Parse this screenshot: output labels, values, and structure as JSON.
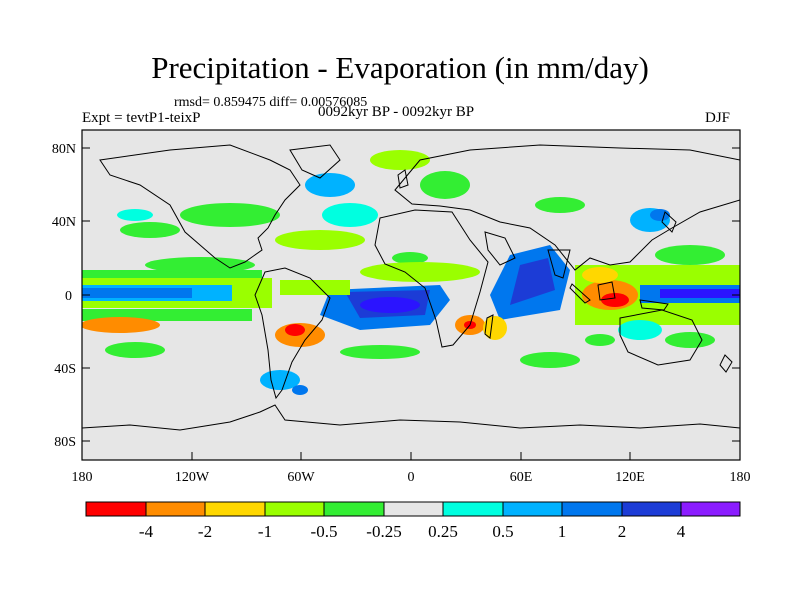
{
  "title": "Precipitation - Evaporation (in mm/day)",
  "stats_text": "rmsd= 0.859475 diff= 0.00576085",
  "left_label": "Expt = tevtP1-teixP",
  "center_label": "0092kyr BP - 0092kyr BP",
  "right_label": "DJF",
  "lat_ticks": [
    "80N",
    "40N",
    "0",
    "40S",
    "80S"
  ],
  "lon_ticks": [
    "180",
    "120W",
    "60W",
    "0",
    "60E",
    "120E",
    "180"
  ],
  "colorbar": {
    "colors": [
      "#ff0000",
      "#ff8c00",
      "#ffd700",
      "#e6e600",
      "#9aff00",
      "#33ee33",
      "#e6e6e6",
      "#00ffe0",
      "#00b2ff",
      "#0077ee",
      "#1c3cd6",
      "#2b14ff",
      "#8b1cff"
    ],
    "labels": [
      "-4",
      "-2",
      "-1",
      "-0.5",
      "-0.25",
      "0.25",
      "0.5",
      "1",
      "2",
      "4"
    ]
  }
}
